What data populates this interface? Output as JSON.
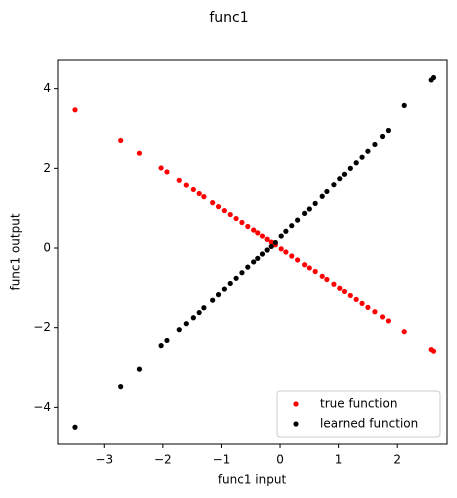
{
  "chart_data": {
    "type": "scatter",
    "title": "func1",
    "x_label": "func1 input",
    "y_label": "func1 output",
    "x": [
      -3.5,
      -2.72,
      -2.4,
      -2.03,
      -1.93,
      -1.72,
      -1.6,
      -1.48,
      -1.38,
      -1.3,
      -1.15,
      -1.05,
      -0.95,
      -0.85,
      -0.75,
      -0.65,
      -0.55,
      -0.45,
      -0.38,
      -0.3,
      -0.22,
      -0.15,
      -0.08,
      0.02,
      0.1,
      0.2,
      0.3,
      0.42,
      0.5,
      0.6,
      0.72,
      0.8,
      0.92,
      1.02,
      1.1,
      1.2,
      1.3,
      1.4,
      1.5,
      1.62,
      1.75,
      1.85,
      2.12,
      2.58,
      2.62
    ],
    "series": [
      {
        "name": "true function",
        "color": "#ff0000",
        "values": [
          3.47,
          2.7,
          2.38,
          2.01,
          1.91,
          1.7,
          1.58,
          1.47,
          1.37,
          1.29,
          1.14,
          1.04,
          0.94,
          0.84,
          0.74,
          0.64,
          0.54,
          0.45,
          0.38,
          0.3,
          0.22,
          0.15,
          0.08,
          -0.02,
          -0.1,
          -0.2,
          -0.3,
          -0.42,
          -0.5,
          -0.59,
          -0.71,
          -0.79,
          -0.91,
          -1.01,
          -1.09,
          -1.19,
          -1.29,
          -1.39,
          -1.49,
          -1.6,
          -1.73,
          -1.83,
          -2.1,
          -2.55,
          -2.59
        ]
      },
      {
        "name": "learned function",
        "color": "#000000",
        "values": [
          -4.5,
          -3.48,
          -3.04,
          -2.45,
          -2.32,
          -2.05,
          -1.9,
          -1.75,
          -1.62,
          -1.5,
          -1.31,
          -1.17,
          -1.03,
          -0.89,
          -0.76,
          -0.62,
          -0.48,
          -0.35,
          -0.26,
          -0.15,
          -0.05,
          0.04,
          0.14,
          0.3,
          0.42,
          0.56,
          0.7,
          0.87,
          0.98,
          1.12,
          1.3,
          1.42,
          1.59,
          1.74,
          1.85,
          2.0,
          2.14,
          2.28,
          2.43,
          2.6,
          2.8,
          2.95,
          3.58,
          4.22,
          4.28
        ]
      }
    ],
    "xlim": [
      -3.79,
      2.85
    ],
    "ylim": [
      -4.92,
      4.72
    ],
    "xticks": [
      {
        "value": -3,
        "label": "−3"
      },
      {
        "value": -2,
        "label": "−2"
      },
      {
        "value": -1,
        "label": "−1"
      },
      0,
      1,
      2
    ],
    "yticks": [
      {
        "value": -4,
        "label": "−4"
      },
      {
        "value": -2,
        "label": "−2"
      },
      0,
      2,
      4
    ],
    "grid": false,
    "legend": "lower right"
  }
}
